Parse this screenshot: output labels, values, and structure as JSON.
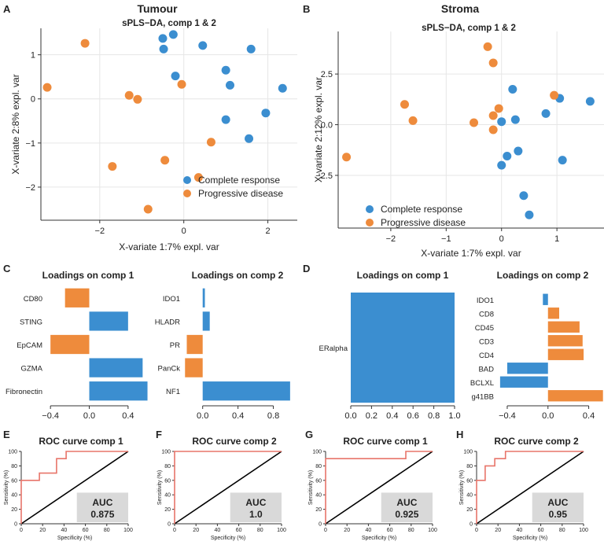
{
  "colors": {
    "complete": "#3b8ed0",
    "progressive": "#ee8b3c",
    "roc": "#e8756a",
    "grid": "#e6e6e6",
    "auc_box": "#d9d9d9"
  },
  "panels": {
    "A": {
      "letter": "A",
      "title": "Tumour"
    },
    "B": {
      "letter": "B",
      "title": "Stroma"
    },
    "C": {
      "letter": "C"
    },
    "D": {
      "letter": "D"
    },
    "E": {
      "letter": "E"
    },
    "F": {
      "letter": "F"
    },
    "G": {
      "letter": "G"
    },
    "H": {
      "letter": "H"
    }
  },
  "chart_data": [
    {
      "id": "A",
      "type": "scatter",
      "title": "sPLS−DA, comp 1 & 2",
      "xlabel": "X-variate 1:7% expl. var",
      "ylabel": "X-variate 2:8% expl. var",
      "xlim": [
        -3.4,
        2.7
      ],
      "ylim": [
        -2.75,
        1.6
      ],
      "xticks": [
        -2,
        0,
        2
      ],
      "yticks": [
        -2,
        -1,
        0,
        1
      ],
      "xtick_labels": [
        "−2",
        "0",
        "2"
      ],
      "ytick_labels": [
        "−2",
        "−1",
        "0",
        "1"
      ],
      "legend_position": "bottom-right",
      "series": [
        {
          "name": "Complete response",
          "color_key": "complete",
          "points": [
            [
              -0.5,
              1.37
            ],
            [
              -0.25,
              1.46
            ],
            [
              -0.48,
              1.13
            ],
            [
              0.45,
              1.21
            ],
            [
              1.6,
              1.13
            ],
            [
              -0.2,
              0.52
            ],
            [
              1.0,
              0.65
            ],
            [
              1.1,
              0.31
            ],
            [
              2.35,
              0.24
            ],
            [
              1.95,
              -0.32
            ],
            [
              1.0,
              -0.47
            ],
            [
              1.55,
              -0.9
            ]
          ]
        },
        {
          "name": "Progressive disease",
          "color_key": "progressive",
          "points": [
            [
              -2.35,
              1.26
            ],
            [
              -3.25,
              0.26
            ],
            [
              -1.3,
              0.08
            ],
            [
              -1.1,
              -0.01
            ],
            [
              -0.05,
              0.33
            ],
            [
              0.65,
              -0.98
            ],
            [
              -0.45,
              -1.39
            ],
            [
              -1.7,
              -1.53
            ],
            [
              0.35,
              -1.78
            ],
            [
              -0.85,
              -2.5
            ]
          ]
        }
      ]
    },
    {
      "id": "B",
      "type": "scatter",
      "title": "sPLS−DA, comp 1 & 2",
      "xlabel": "X-variate 1:7% expl. var",
      "ylabel": "X-variate 2:12% expl. var",
      "xlim": [
        -2.95,
        1.85
      ],
      "ylim": [
        -5.1,
        4.6
      ],
      "xticks": [
        -2,
        -1,
        0,
        1
      ],
      "yticks": [
        -2.5,
        0,
        2.5
      ],
      "xtick_labels": [
        "−2",
        "−1",
        "0",
        "1"
      ],
      "ytick_labels": [
        "−2.5",
        "0.0",
        "2.5"
      ],
      "legend_position": "bottom-left",
      "series": [
        {
          "name": "Complete response",
          "color_key": "complete",
          "points": [
            [
              0.2,
              1.75
            ],
            [
              1.05,
              1.3
            ],
            [
              1.6,
              1.15
            ],
            [
              0.8,
              0.55
            ],
            [
              0.25,
              0.25
            ],
            [
              0.0,
              0.15
            ],
            [
              0.3,
              -1.3
            ],
            [
              0.1,
              -1.55
            ],
            [
              1.1,
              -1.75
            ],
            [
              0.0,
              -2.0
            ],
            [
              0.4,
              -3.5
            ],
            [
              0.5,
              -4.45
            ]
          ]
        },
        {
          "name": "Progressive disease",
          "color_key": "progressive",
          "points": [
            [
              -0.25,
              3.85
            ],
            [
              -0.15,
              3.05
            ],
            [
              0.95,
              1.45
            ],
            [
              -1.75,
              1.0
            ],
            [
              -0.05,
              0.8
            ],
            [
              -0.15,
              0.45
            ],
            [
              -1.6,
              0.2
            ],
            [
              -0.5,
              0.1
            ],
            [
              -0.15,
              -0.25
            ],
            [
              -2.8,
              -1.6
            ]
          ]
        }
      ]
    },
    {
      "id": "C1",
      "type": "bar",
      "title": "Loadings on comp 1",
      "orientation": "horizontal",
      "categories": [
        "CD80",
        "STING",
        "EpCAM",
        "GZMA",
        "Fibronectin"
      ],
      "values": [
        -0.25,
        0.4,
        -0.4,
        0.55,
        0.6
      ],
      "colors": [
        "progressive",
        "complete",
        "progressive",
        "complete",
        "complete"
      ],
      "xlim": [
        -0.45,
        0.62
      ],
      "xticks": [
        -0.4,
        0,
        0.4
      ],
      "xtick_labels": [
        "−0.4",
        "0.0",
        "0.4"
      ]
    },
    {
      "id": "C2",
      "type": "bar",
      "title": "Loadings on comp 2",
      "orientation": "horizontal",
      "categories": [
        "IDO1",
        "HLADR",
        "PR",
        "PanCk",
        "NF1"
      ],
      "values": [
        0.025,
        0.08,
        -0.18,
        -0.2,
        0.99
      ],
      "colors": [
        "complete",
        "complete",
        "progressive",
        "progressive",
        "complete"
      ],
      "xlim": [
        -0.22,
        1.0
      ],
      "xticks": [
        0,
        0.4,
        0.8
      ],
      "xtick_labels": [
        "0.0",
        "0.4",
        "0.8"
      ]
    },
    {
      "id": "D1",
      "type": "bar",
      "title": "Loadings on comp 1",
      "orientation": "horizontal",
      "categories": [
        "ERalpha"
      ],
      "values": [
        1.0
      ],
      "colors": [
        "complete"
      ],
      "xlim": [
        0,
        1.0
      ],
      "xticks": [
        0,
        0.2,
        0.4,
        0.6,
        0.8,
        1.0
      ],
      "xtick_labels": [
        "0.0",
        "0.2",
        "0.4",
        "0.6",
        "0.8",
        "1.0"
      ]
    },
    {
      "id": "D2",
      "type": "bar",
      "title": "Loadings on comp 2",
      "orientation": "horizontal",
      "categories": [
        "IDO1",
        "CD8",
        "CD45",
        "CD3",
        "CD4",
        "BAD",
        "BCLXL",
        "g41BB"
      ],
      "values": [
        -0.05,
        0.11,
        0.31,
        0.34,
        0.35,
        -0.4,
        -0.47,
        0.54
      ],
      "colors": [
        "complete",
        "progressive",
        "progressive",
        "progressive",
        "progressive",
        "complete",
        "complete",
        "progressive"
      ],
      "xlim": [
        -0.5,
        0.55
      ],
      "xticks": [
        -0.4,
        0,
        0.4
      ],
      "xtick_labels": [
        "−0.4",
        "0.0",
        "0.4"
      ]
    },
    {
      "id": "E",
      "type": "line",
      "title": "ROC curve comp 1",
      "xlabel": "Specificity (%)",
      "ylabel": "Sensitivity (%)",
      "xlim": [
        0,
        100
      ],
      "ylim": [
        0,
        100
      ],
      "ticks": [
        0,
        20,
        40,
        60,
        80,
        100
      ],
      "roc": [
        [
          0,
          0
        ],
        [
          0,
          60
        ],
        [
          17,
          60
        ],
        [
          17,
          70
        ],
        [
          33,
          70
        ],
        [
          33,
          90
        ],
        [
          42,
          90
        ],
        [
          42,
          100
        ],
        [
          100,
          100
        ]
      ],
      "auc_label": "AUC",
      "auc_value": "0.875"
    },
    {
      "id": "F",
      "type": "line",
      "title": "ROC curve comp 2",
      "xlabel": "Specificity (%)",
      "ylabel": "Sensitivity (%)",
      "xlim": [
        0,
        100
      ],
      "ylim": [
        0,
        100
      ],
      "ticks": [
        0,
        20,
        40,
        60,
        80,
        100
      ],
      "roc": [
        [
          0,
          0
        ],
        [
          0,
          100
        ],
        [
          100,
          100
        ]
      ],
      "auc_label": "AUC",
      "auc_value": "1.0"
    },
    {
      "id": "G",
      "type": "line",
      "title": "ROC curve comp 1",
      "xlabel": "Specificity (%)",
      "ylabel": "Sensitivity (%)",
      "xlim": [
        0,
        100
      ],
      "ylim": [
        0,
        100
      ],
      "ticks": [
        0,
        20,
        40,
        60,
        80,
        100
      ],
      "roc": [
        [
          0,
          0
        ],
        [
          0,
          90
        ],
        [
          75,
          90
        ],
        [
          75,
          100
        ],
        [
          100,
          100
        ]
      ],
      "auc_label": "AUC",
      "auc_value": "0.925"
    },
    {
      "id": "H",
      "type": "line",
      "title": "ROC curve comp 2",
      "xlabel": "Specificity (%)",
      "ylabel": "Sensitivity (%)",
      "xlim": [
        0,
        100
      ],
      "ylim": [
        0,
        100
      ],
      "ticks": [
        0,
        20,
        40,
        60,
        80,
        100
      ],
      "roc": [
        [
          0,
          0
        ],
        [
          0,
          60
        ],
        [
          8,
          60
        ],
        [
          8,
          80
        ],
        [
          17,
          80
        ],
        [
          17,
          90
        ],
        [
          27,
          90
        ],
        [
          27,
          100
        ],
        [
          100,
          100
        ]
      ],
      "auc_label": "AUC",
      "auc_value": "0.95"
    }
  ]
}
